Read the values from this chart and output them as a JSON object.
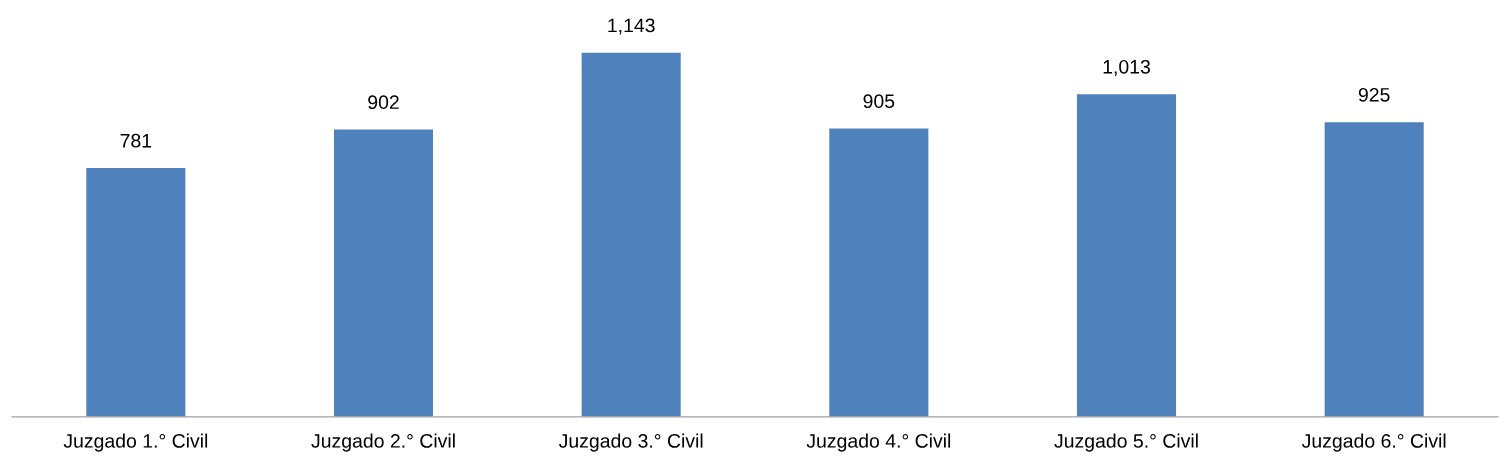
{
  "chart_data": {
    "type": "bar",
    "categories": [
      "Juzgado 1.° Civil",
      "Juzgado 2.° Civil",
      "Juzgado 3.° Civil",
      "Juzgado 4.° Civil",
      "Juzgado 5.° Civil",
      "Juzgado 6.° Civil"
    ],
    "values": [
      781,
      902,
      1143,
      905,
      1013,
      925
    ],
    "value_labels": [
      "781",
      "902",
      "1,143",
      "905",
      "1,013",
      "925"
    ],
    "color": "#4f81bd",
    "grid": false,
    "legend": false
  }
}
